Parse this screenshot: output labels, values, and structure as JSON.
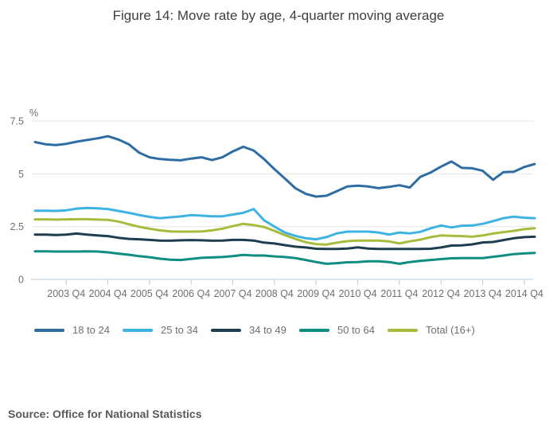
{
  "header": {
    "title": "Figure 14: Move rate by age, 4-quarter moving average"
  },
  "footer": {
    "source": "Source: Office for National Statistics"
  },
  "colors": {
    "axis_line": "#b9cbd8",
    "gridline": "#e4e4e4",
    "tick_text": "#6f6f6f",
    "title_text": "#3f3f3f",
    "source_text": "#595959"
  },
  "chart_data": {
    "type": "line",
    "title": "Figure 14: Move rate by age, 4-quarter moving average",
    "xlabel": "",
    "ylabel": "%",
    "ylim": [
      0,
      7.5
    ],
    "y_ticks": [
      0,
      2.5,
      5,
      7.5
    ],
    "y_tick_labels": [
      "0",
      "2.5",
      "5",
      "7.5"
    ],
    "grid": "horizontal",
    "legend_position": "bottom",
    "x_quarters": [
      "2003 Q1",
      "2003 Q2",
      "2003 Q3",
      "2003 Q4",
      "2004 Q1",
      "2004 Q2",
      "2004 Q3",
      "2004 Q4",
      "2005 Q1",
      "2005 Q2",
      "2005 Q3",
      "2005 Q4",
      "2006 Q1",
      "2006 Q2",
      "2006 Q3",
      "2006 Q4",
      "2007 Q1",
      "2007 Q2",
      "2007 Q3",
      "2007 Q4",
      "2008 Q1",
      "2008 Q2",
      "2008 Q3",
      "2008 Q4",
      "2009 Q1",
      "2009 Q2",
      "2009 Q3",
      "2009 Q4",
      "2010 Q1",
      "2010 Q2",
      "2010 Q3",
      "2010 Q4",
      "2011 Q1",
      "2011 Q2",
      "2011 Q3",
      "2011 Q4",
      "2012 Q1",
      "2012 Q2",
      "2012 Q3",
      "2012 Q4",
      "2013 Q1",
      "2013 Q2",
      "2013 Q3",
      "2013 Q4",
      "2014 Q1",
      "2014 Q2",
      "2014 Q3",
      "2014 Q4",
      "2015 Q1"
    ],
    "x_tick_labels": [
      "2003 Q4",
      "2004 Q4",
      "2005 Q4",
      "2006 Q4",
      "2007 Q4",
      "2008 Q4",
      "2009 Q4",
      "2010 Q4",
      "2011 Q4",
      "2012 Q4",
      "2013 Q4",
      "2014 Q4"
    ],
    "series": [
      {
        "name": "18 to 24",
        "color": "#2e6da4",
        "values": [
          6.5,
          6.4,
          6.36,
          6.42,
          6.52,
          6.6,
          6.68,
          6.78,
          6.62,
          6.4,
          6.0,
          5.78,
          5.7,
          5.66,
          5.64,
          5.72,
          5.78,
          5.65,
          5.78,
          6.06,
          6.28,
          6.1,
          5.7,
          5.22,
          4.78,
          4.32,
          4.05,
          3.92,
          3.96,
          4.18,
          4.4,
          4.44,
          4.4,
          4.32,
          4.38,
          4.46,
          4.35,
          4.85,
          5.06,
          5.34,
          5.58,
          5.28,
          5.26,
          5.14,
          4.72,
          5.08,
          5.1,
          5.32,
          5.46
        ]
      },
      {
        "name": "25 to 34",
        "color": "#3eb3e3",
        "values": [
          3.25,
          3.25,
          3.24,
          3.27,
          3.35,
          3.38,
          3.36,
          3.33,
          3.24,
          3.15,
          3.05,
          2.96,
          2.9,
          2.94,
          2.98,
          3.04,
          3.02,
          2.99,
          2.99,
          3.07,
          3.15,
          3.33,
          2.8,
          2.5,
          2.22,
          2.06,
          1.95,
          1.9,
          2.0,
          2.18,
          2.26,
          2.26,
          2.26,
          2.22,
          2.12,
          2.22,
          2.18,
          2.25,
          2.42,
          2.55,
          2.46,
          2.54,
          2.55,
          2.63,
          2.76,
          2.9,
          2.97,
          2.92,
          2.9
        ]
      },
      {
        "name": "34 to 49",
        "color": "#1c3e4e",
        "values": [
          2.12,
          2.12,
          2.1,
          2.12,
          2.17,
          2.12,
          2.08,
          2.05,
          1.97,
          1.92,
          1.9,
          1.87,
          1.84,
          1.83,
          1.85,
          1.86,
          1.85,
          1.83,
          1.84,
          1.87,
          1.87,
          1.84,
          1.74,
          1.7,
          1.62,
          1.55,
          1.51,
          1.45,
          1.44,
          1.44,
          1.46,
          1.52,
          1.46,
          1.44,
          1.44,
          1.44,
          1.44,
          1.44,
          1.45,
          1.51,
          1.6,
          1.61,
          1.66,
          1.75,
          1.77,
          1.86,
          1.95,
          2.0,
          2.02
        ]
      },
      {
        "name": "50 to 64",
        "color": "#0e8d80",
        "values": [
          1.33,
          1.33,
          1.32,
          1.32,
          1.32,
          1.33,
          1.32,
          1.28,
          1.22,
          1.17,
          1.1,
          1.05,
          0.98,
          0.93,
          0.92,
          0.97,
          1.02,
          1.04,
          1.06,
          1.1,
          1.16,
          1.13,
          1.13,
          1.09,
          1.06,
          1.01,
          0.92,
          0.82,
          0.74,
          0.77,
          0.81,
          0.82,
          0.86,
          0.86,
          0.82,
          0.74,
          0.82,
          0.88,
          0.92,
          0.96,
          1.0,
          1.01,
          1.01,
          1.01,
          1.07,
          1.13,
          1.2,
          1.23,
          1.25
        ]
      },
      {
        "name": "Total (16+)",
        "color": "#a5bc3c",
        "values": [
          2.84,
          2.84,
          2.83,
          2.84,
          2.85,
          2.85,
          2.83,
          2.82,
          2.74,
          2.61,
          2.49,
          2.4,
          2.32,
          2.27,
          2.26,
          2.26,
          2.27,
          2.32,
          2.4,
          2.52,
          2.63,
          2.57,
          2.48,
          2.3,
          2.1,
          1.92,
          1.76,
          1.67,
          1.65,
          1.74,
          1.81,
          1.84,
          1.84,
          1.84,
          1.8,
          1.7,
          1.8,
          1.88,
          2.0,
          2.08,
          2.06,
          2.05,
          2.02,
          2.08,
          2.17,
          2.24,
          2.3,
          2.38,
          2.42
        ]
      }
    ]
  }
}
